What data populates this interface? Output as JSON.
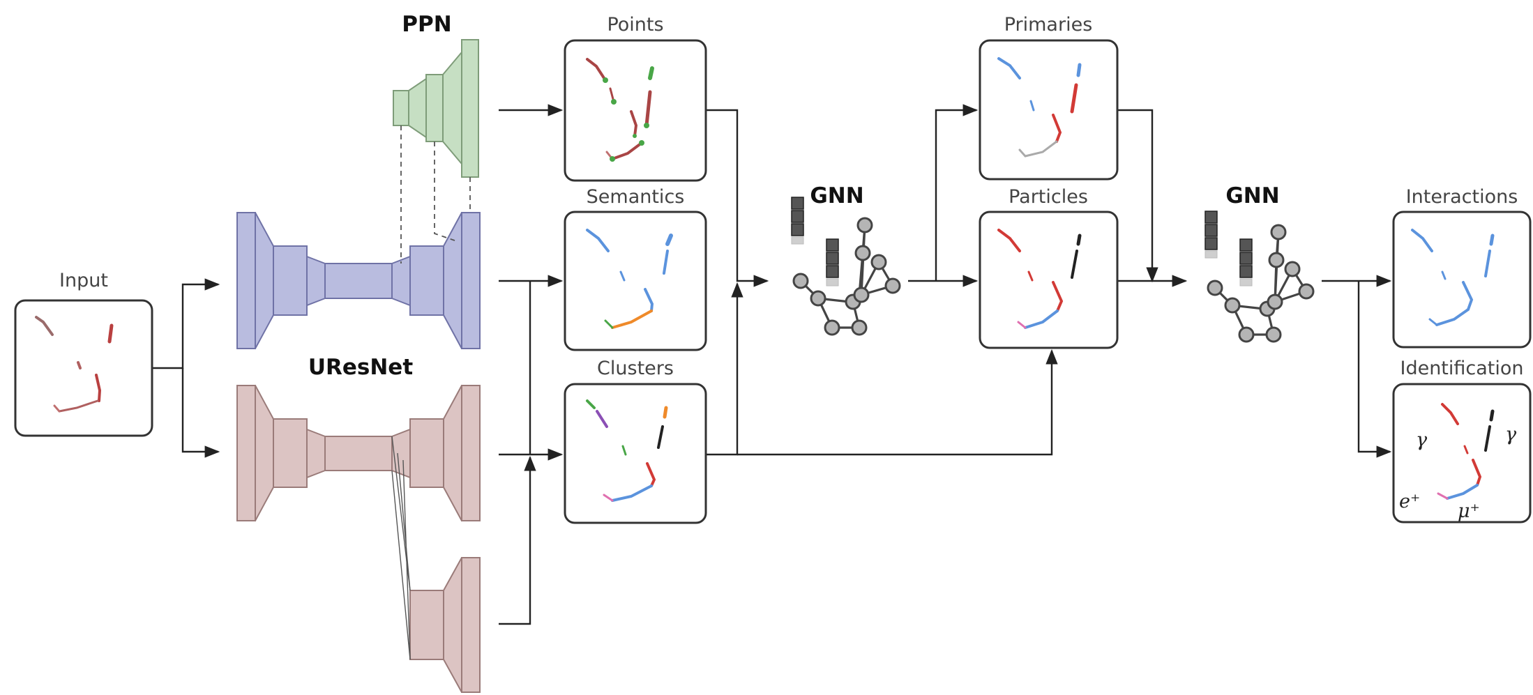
{
  "labels": {
    "input": "Input",
    "ppn": "PPN",
    "uresnet": "UResNet",
    "points": "Points",
    "semantics": "Semantics",
    "clusters": "Clusters",
    "gnn_1": "GNN",
    "primaries": "Primaries",
    "particles": "Particles",
    "gnn_2": "GNN",
    "interactions": "Interactions",
    "identification": "Identification"
  },
  "identification_symbols": {
    "gamma_left": "γ",
    "gamma_right": "γ",
    "positron": "e⁺",
    "muon": "μ⁺"
  },
  "colors": {
    "ppn_fill": "#c6dfc3",
    "ppn_stroke": "#7e9c79",
    "semantic_net_fill": "#b9bcdf",
    "semantic_net_stroke": "#6f72a6",
    "cluster_net_fill": "#dcc4c3",
    "cluster_net_stroke": "#9a7b79",
    "track_red": "#d23a36",
    "track_blue": "#5b93dd",
    "point_green": "#49a647",
    "cluster_orange": "#ef8a2a",
    "cluster_purple": "#8b4fb5",
    "node_gray": "#b5b5b5"
  }
}
